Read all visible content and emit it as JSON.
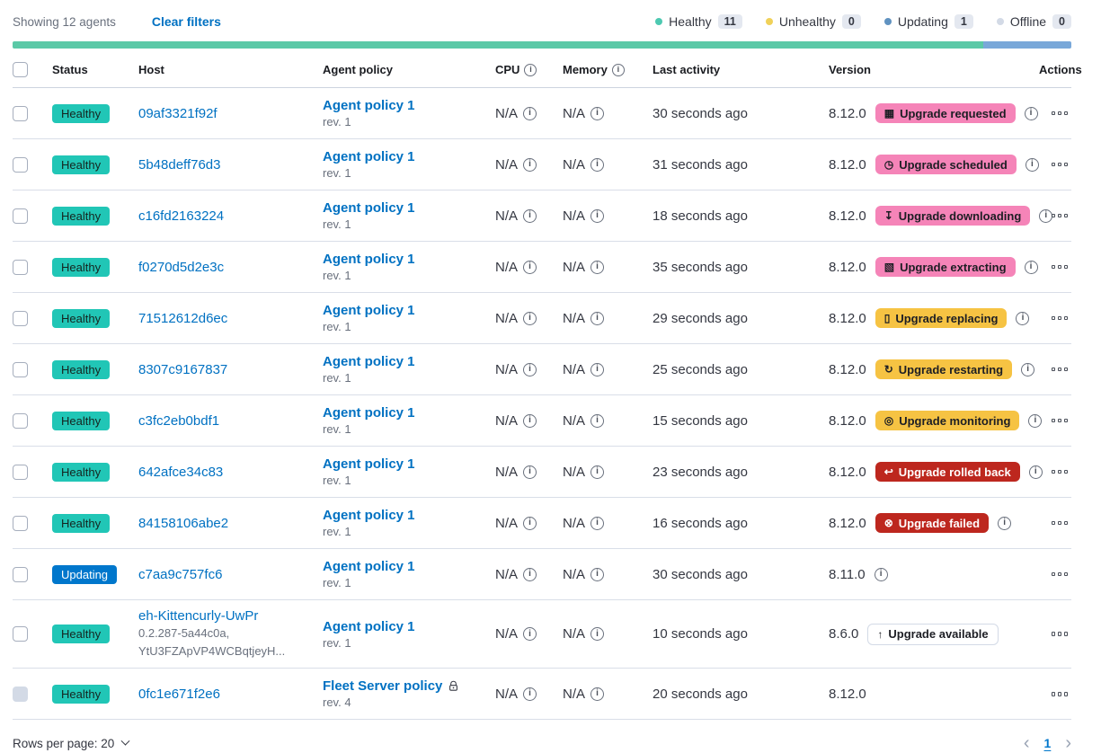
{
  "icons": {
    "calendar": "▦",
    "clock": "◷",
    "download": "↧",
    "package": "▧",
    "document": "▯",
    "refresh": "↻",
    "monitor": "◎",
    "rollback": "↩",
    "failed": "⊗",
    "up": "↑",
    "info": "i"
  },
  "colors": {
    "healthy_badge": "#21c6b6",
    "updating_badge": "#0077cc",
    "pink_badge": "#f584b8",
    "warning_badge": "#f6c343",
    "danger_badge": "#bd271e",
    "link_blue": "#0071c2"
  },
  "toolbar": {
    "showing": "Showing 12 agents",
    "clear_filters": "Clear filters"
  },
  "legend": {
    "items": [
      {
        "label": "Healthy",
        "count": "11",
        "color": "#4dc9b1"
      },
      {
        "label": "Unhealthy",
        "count": "0",
        "color": "#f0d159"
      },
      {
        "label": "Updating",
        "count": "1",
        "color": "#6092c0"
      },
      {
        "label": "Offline",
        "count": "0",
        "color": "#d3dae6"
      }
    ]
  },
  "health_bar": {
    "segments": [
      {
        "status": "healthy",
        "color": "#5bc9a7",
        "pct": 91.67
      },
      {
        "status": "updating",
        "color": "#79a8d9",
        "pct": 8.33
      }
    ]
  },
  "table": {
    "headers": {
      "status": "Status",
      "host": "Host",
      "policy": "Agent policy",
      "cpu": "CPU",
      "memory": "Memory",
      "last_activity": "Last activity",
      "version": "Version",
      "actions": "Actions"
    },
    "rows": [
      {
        "status": "Healthy",
        "status_variant": "healthy",
        "host": "09af3321f92f",
        "host_sub": [],
        "policy": "Agent policy 1",
        "policy_rev": "rev. 1",
        "policy_lock": false,
        "cpu": "N/A",
        "memory": "N/A",
        "last_activity": "30 seconds ago",
        "version": "8.12.0",
        "upgrade": {
          "label": "Upgrade requested",
          "icon": "calendar",
          "variant": "pink"
        },
        "version_info": true,
        "checkbox_disabled": false
      },
      {
        "status": "Healthy",
        "status_variant": "healthy",
        "host": "5b48deff76d3",
        "host_sub": [],
        "policy": "Agent policy 1",
        "policy_rev": "rev. 1",
        "policy_lock": false,
        "cpu": "N/A",
        "memory": "N/A",
        "last_activity": "31 seconds ago",
        "version": "8.12.0",
        "upgrade": {
          "label": "Upgrade scheduled",
          "icon": "clock",
          "variant": "pink"
        },
        "version_info": true,
        "checkbox_disabled": false
      },
      {
        "status": "Healthy",
        "status_variant": "healthy",
        "host": "c16fd2163224",
        "host_sub": [],
        "policy": "Agent policy 1",
        "policy_rev": "rev. 1",
        "policy_lock": false,
        "cpu": "N/A",
        "memory": "N/A",
        "last_activity": "18 seconds ago",
        "version": "8.12.0",
        "upgrade": {
          "label": "Upgrade downloading",
          "icon": "download",
          "variant": "pink"
        },
        "version_info": true,
        "checkbox_disabled": false
      },
      {
        "status": "Healthy",
        "status_variant": "healthy",
        "host": "f0270d5d2e3c",
        "host_sub": [],
        "policy": "Agent policy 1",
        "policy_rev": "rev. 1",
        "policy_lock": false,
        "cpu": "N/A",
        "memory": "N/A",
        "last_activity": "35 seconds ago",
        "version": "8.12.0",
        "upgrade": {
          "label": "Upgrade extracting",
          "icon": "package",
          "variant": "pink"
        },
        "version_info": true,
        "checkbox_disabled": false
      },
      {
        "status": "Healthy",
        "status_variant": "healthy",
        "host": "71512612d6ec",
        "host_sub": [],
        "policy": "Agent policy 1",
        "policy_rev": "rev. 1",
        "policy_lock": false,
        "cpu": "N/A",
        "memory": "N/A",
        "last_activity": "29 seconds ago",
        "version": "8.12.0",
        "upgrade": {
          "label": "Upgrade replacing",
          "icon": "document",
          "variant": "warning"
        },
        "version_info": true,
        "checkbox_disabled": false
      },
      {
        "status": "Healthy",
        "status_variant": "healthy",
        "host": "8307c9167837",
        "host_sub": [],
        "policy": "Agent policy 1",
        "policy_rev": "rev. 1",
        "policy_lock": false,
        "cpu": "N/A",
        "memory": "N/A",
        "last_activity": "25 seconds ago",
        "version": "8.12.0",
        "upgrade": {
          "label": "Upgrade restarting",
          "icon": "refresh",
          "variant": "warning"
        },
        "version_info": true,
        "checkbox_disabled": false
      },
      {
        "status": "Healthy",
        "status_variant": "healthy",
        "host": "c3fc2eb0bdf1",
        "host_sub": [],
        "policy": "Agent policy 1",
        "policy_rev": "rev. 1",
        "policy_lock": false,
        "cpu": "N/A",
        "memory": "N/A",
        "last_activity": "15 seconds ago",
        "version": "8.12.0",
        "upgrade": {
          "label": "Upgrade monitoring",
          "icon": "monitor",
          "variant": "warning"
        },
        "version_info": true,
        "checkbox_disabled": false
      },
      {
        "status": "Healthy",
        "status_variant": "healthy",
        "host": "642afce34c83",
        "host_sub": [],
        "policy": "Agent policy 1",
        "policy_rev": "rev. 1",
        "policy_lock": false,
        "cpu": "N/A",
        "memory": "N/A",
        "last_activity": "23 seconds ago",
        "version": "8.12.0",
        "upgrade": {
          "label": "Upgrade rolled back",
          "icon": "rollback",
          "variant": "danger"
        },
        "version_info": true,
        "checkbox_disabled": false
      },
      {
        "status": "Healthy",
        "status_variant": "healthy",
        "host": "84158106abe2",
        "host_sub": [],
        "policy": "Agent policy 1",
        "policy_rev": "rev. 1",
        "policy_lock": false,
        "cpu": "N/A",
        "memory": "N/A",
        "last_activity": "16 seconds ago",
        "version": "8.12.0",
        "upgrade": {
          "label": "Upgrade failed",
          "icon": "failed",
          "variant": "danger"
        },
        "version_info": true,
        "checkbox_disabled": false
      },
      {
        "status": "Updating",
        "status_variant": "updating",
        "host": "c7aa9c757fc6",
        "host_sub": [],
        "policy": "Agent policy 1",
        "policy_rev": "rev. 1",
        "policy_lock": false,
        "cpu": "N/A",
        "memory": "N/A",
        "last_activity": "30 seconds ago",
        "version": "8.11.0",
        "upgrade": null,
        "version_info": true,
        "checkbox_disabled": false
      },
      {
        "status": "Healthy",
        "status_variant": "healthy",
        "host": "eh-Kittencurly-UwPr",
        "host_sub": [
          "0.2.287-5a44c0a,",
          "YtU3FZApVP4WCBqtjeyH..."
        ],
        "policy": "Agent policy 1",
        "policy_rev": "rev. 1",
        "policy_lock": false,
        "cpu": "N/A",
        "memory": "N/A",
        "last_activity": "10 seconds ago",
        "version": "8.6.0",
        "upgrade": {
          "label": "Upgrade available",
          "icon": "up",
          "variant": "hollow"
        },
        "version_info": false,
        "checkbox_disabled": false
      },
      {
        "status": "Healthy",
        "status_variant": "healthy",
        "host": "0fc1e671f2e6",
        "host_sub": [],
        "policy": "Fleet Server policy",
        "policy_rev": "rev. 4",
        "policy_lock": true,
        "cpu": "N/A",
        "memory": "N/A",
        "last_activity": "20 seconds ago",
        "version": "8.12.0",
        "upgrade": null,
        "version_info": false,
        "checkbox_disabled": true
      }
    ]
  },
  "footer": {
    "rows_per_page": "Rows per page: 20",
    "page": "1",
    "prev": "‹",
    "next": "›"
  }
}
